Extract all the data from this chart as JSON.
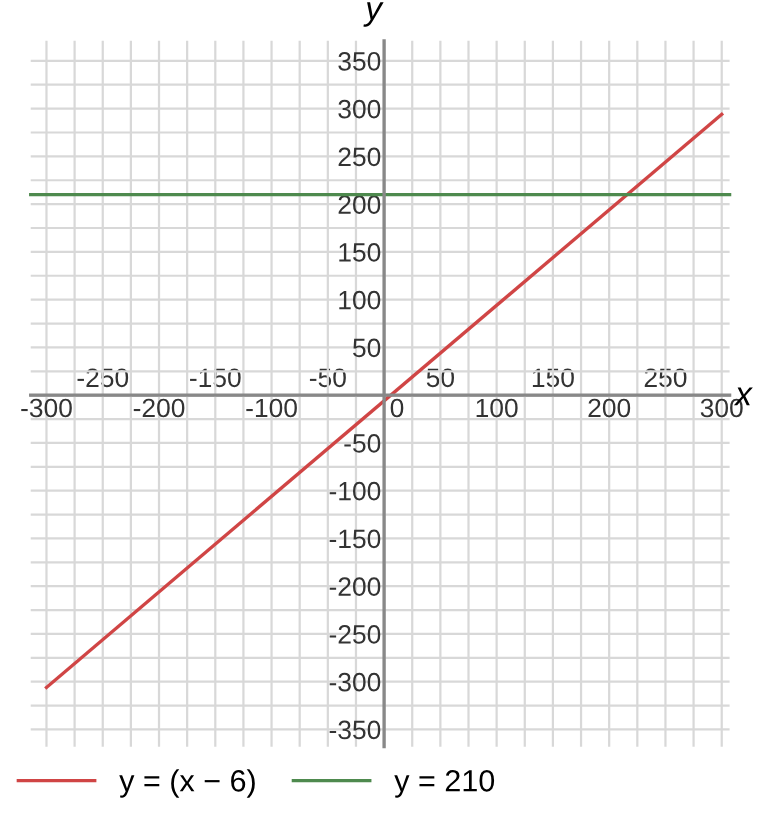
{
  "chart_data": {
    "type": "line",
    "xlabel": "x",
    "ylabel": "y",
    "series": [
      {
        "name": "y = (x − 6)",
        "color": "#d04545",
        "x": [
          -300,
          300
        ],
        "values": [
          -306,
          294
        ]
      },
      {
        "name": "y = 210",
        "color": "#4e8a4e",
        "x": [
          -314,
          307
        ],
        "values": [
          210,
          210
        ]
      }
    ],
    "xlim": [
      -314,
      307
    ],
    "ylim": [
      -368,
      371
    ],
    "xticks": [
      -300,
      {
        "value": -275,
        "label": null
      },
      {
        "value": -250,
        "label": null
      },
      {
        "value": -225,
        "label": null
      },
      -200,
      {
        "value": -175,
        "label": null
      },
      {
        "value": -150,
        "label": null
      },
      {
        "value": -125,
        "label": null
      },
      -100,
      {
        "value": -75,
        "label": null
      },
      {
        "value": -50,
        "label": null
      },
      {
        "value": -25,
        "label": null
      },
      0,
      {
        "value": 25,
        "label": null
      },
      {
        "value": 50,
        "label": null
      },
      {
        "value": 75,
        "label": null
      },
      100,
      {
        "value": 125,
        "label": null
      },
      {
        "value": 150,
        "label": null
      },
      {
        "value": 175,
        "label": null
      },
      200,
      {
        "value": 225,
        "label": null
      },
      {
        "value": 250,
        "label": null
      },
      {
        "value": 275,
        "label": null
      },
      300
    ],
    "x2lim": [
      -314,
      307
    ],
    "x2ticks": [
      -250,
      -150,
      -50,
      50,
      150,
      250
    ],
    "yticks": [
      -350,
      {
        "value": -325,
        "label": null
      },
      -300,
      {
        "value": -275,
        "label": null
      },
      -250,
      {
        "value": -225,
        "label": null
      },
      -200,
      {
        "value": -175,
        "label": null
      },
      -150,
      {
        "value": -125,
        "label": null
      },
      -100,
      {
        "value": -75,
        "label": null
      },
      -50,
      {
        "value": -25,
        "label": null
      },
      {
        "value": 0,
        "label": null
      },
      {
        "value": 25,
        "label": null
      },
      50,
      {
        "value": 75,
        "label": null
      },
      100,
      {
        "value": 125,
        "label": null
      },
      150,
      {
        "value": 175,
        "label": null
      },
      200,
      {
        "value": 225,
        "label": null
      },
      250,
      {
        "value": 275,
        "label": null
      },
      300,
      {
        "value": 325,
        "label": null
      },
      350
    ],
    "grid": true,
    "legend": "bottom left",
    "marker": "none",
    "line_style": "solid"
  }
}
